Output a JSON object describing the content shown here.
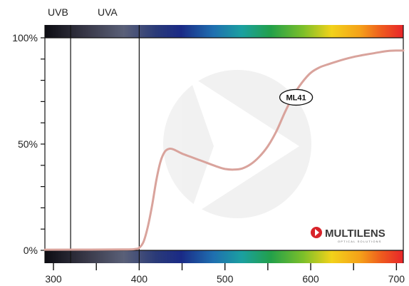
{
  "chart_data": {
    "type": "line",
    "title": "",
    "xlabel": "",
    "ylabel": "",
    "xlim": [
      290,
      708
    ],
    "ylim": [
      0,
      100
    ],
    "x_ticks": [
      300,
      400,
      500,
      600,
      700
    ],
    "x_minor_ticks": [
      350,
      450,
      550,
      650
    ],
    "y_ticks": [
      {
        "value": 0,
        "label": "0%"
      },
      {
        "value": 50,
        "label": "50%"
      },
      {
        "value": 100,
        "label": "100%"
      }
    ],
    "y_minor_step": 10,
    "grid": false,
    "bands": [
      {
        "label": "UVB",
        "start": 290,
        "end": 320
      },
      {
        "label": "UVA",
        "start": 320,
        "end": 400
      }
    ],
    "band_boundaries": [
      320,
      400
    ],
    "series": [
      {
        "name": "ML41",
        "color": "#d9a39c",
        "x": [
          290,
          380,
          395,
          400,
          405,
          410,
          415,
          420,
          425,
          430,
          435,
          440,
          450,
          460,
          470,
          480,
          490,
          500,
          510,
          520,
          530,
          540,
          550,
          560,
          570,
          580,
          590,
          600,
          610,
          620,
          630,
          640,
          650,
          660,
          670,
          680,
          690,
          700,
          708
        ],
        "y": [
          0.3,
          0.4,
          0.6,
          1.2,
          4,
          11,
          21,
          33,
          42,
          46.5,
          47.8,
          47.5,
          45.5,
          44,
          42.5,
          41,
          39.5,
          38.3,
          38,
          38.5,
          40.5,
          44,
          49,
          56,
          65,
          73,
          79,
          83.5,
          86,
          87.5,
          88.8,
          90,
          91,
          91.8,
          92.5,
          93.2,
          93.8,
          94,
          94
        ]
      }
    ],
    "spectrum_bars": true,
    "logo_text": "MULTILENS",
    "logo_subtext": "OPTICAL SOLUTIONS"
  }
}
